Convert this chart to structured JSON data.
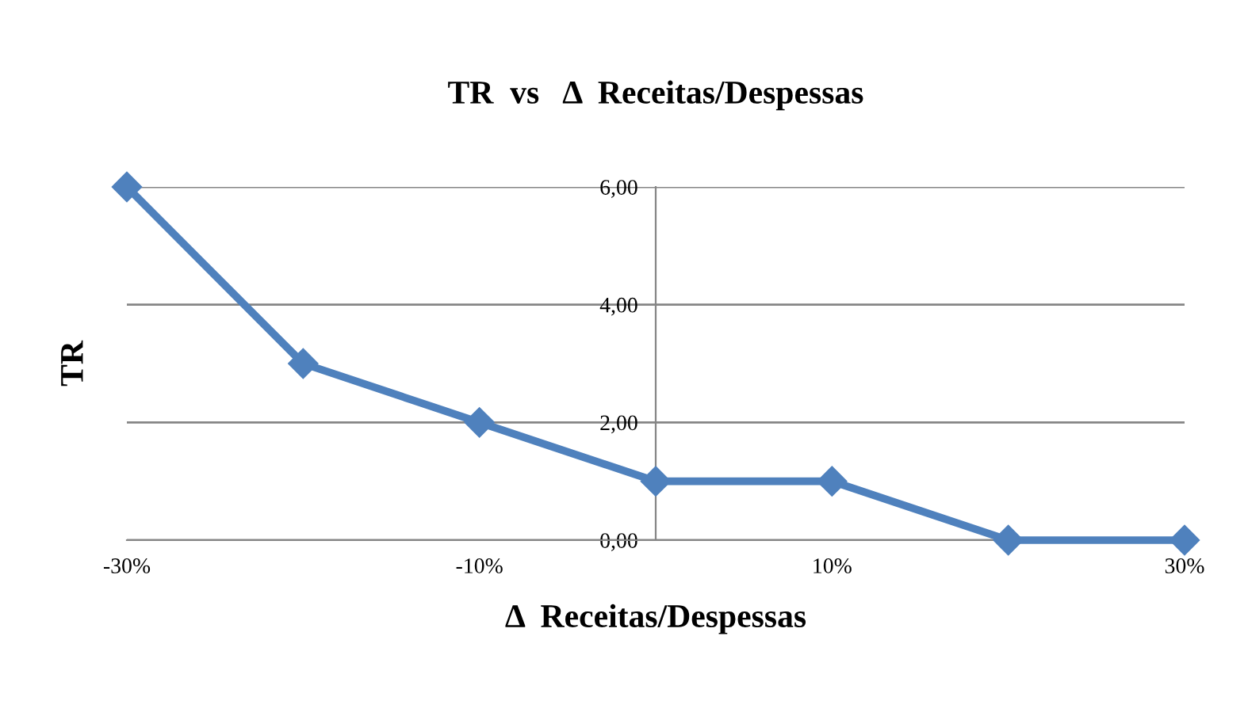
{
  "chart_data": {
    "type": "line",
    "title": "TR  vs   Δ  Receitas/Despessas",
    "xlabel": "Δ  Receitas/Despessas",
    "ylabel": "TR",
    "x": [
      -30,
      -20,
      -10,
      0,
      10,
      20,
      30
    ],
    "series": [
      {
        "color": "#4f81bd",
        "values": [
          6,
          3,
          2,
          1,
          1,
          0,
          0
        ]
      }
    ],
    "xlim": [
      -30,
      30
    ],
    "xticks": [
      {
        "value": -30,
        "label": "-30%"
      },
      {
        "value": -10,
        "label": "-10%"
      },
      {
        "value": 10,
        "label": "10%"
      },
      {
        "value": 30,
        "label": "30%"
      }
    ],
    "ylim": [
      0,
      6
    ],
    "yticks": [
      {
        "value": 0,
        "label": "0,00"
      },
      {
        "value": 2,
        "label": "2,00"
      },
      {
        "value": 4,
        "label": "4,00"
      },
      {
        "value": 6,
        "label": "6,00"
      }
    ],
    "grid": "y",
    "marker": "diamond",
    "line_style": "solid",
    "legend": false
  }
}
